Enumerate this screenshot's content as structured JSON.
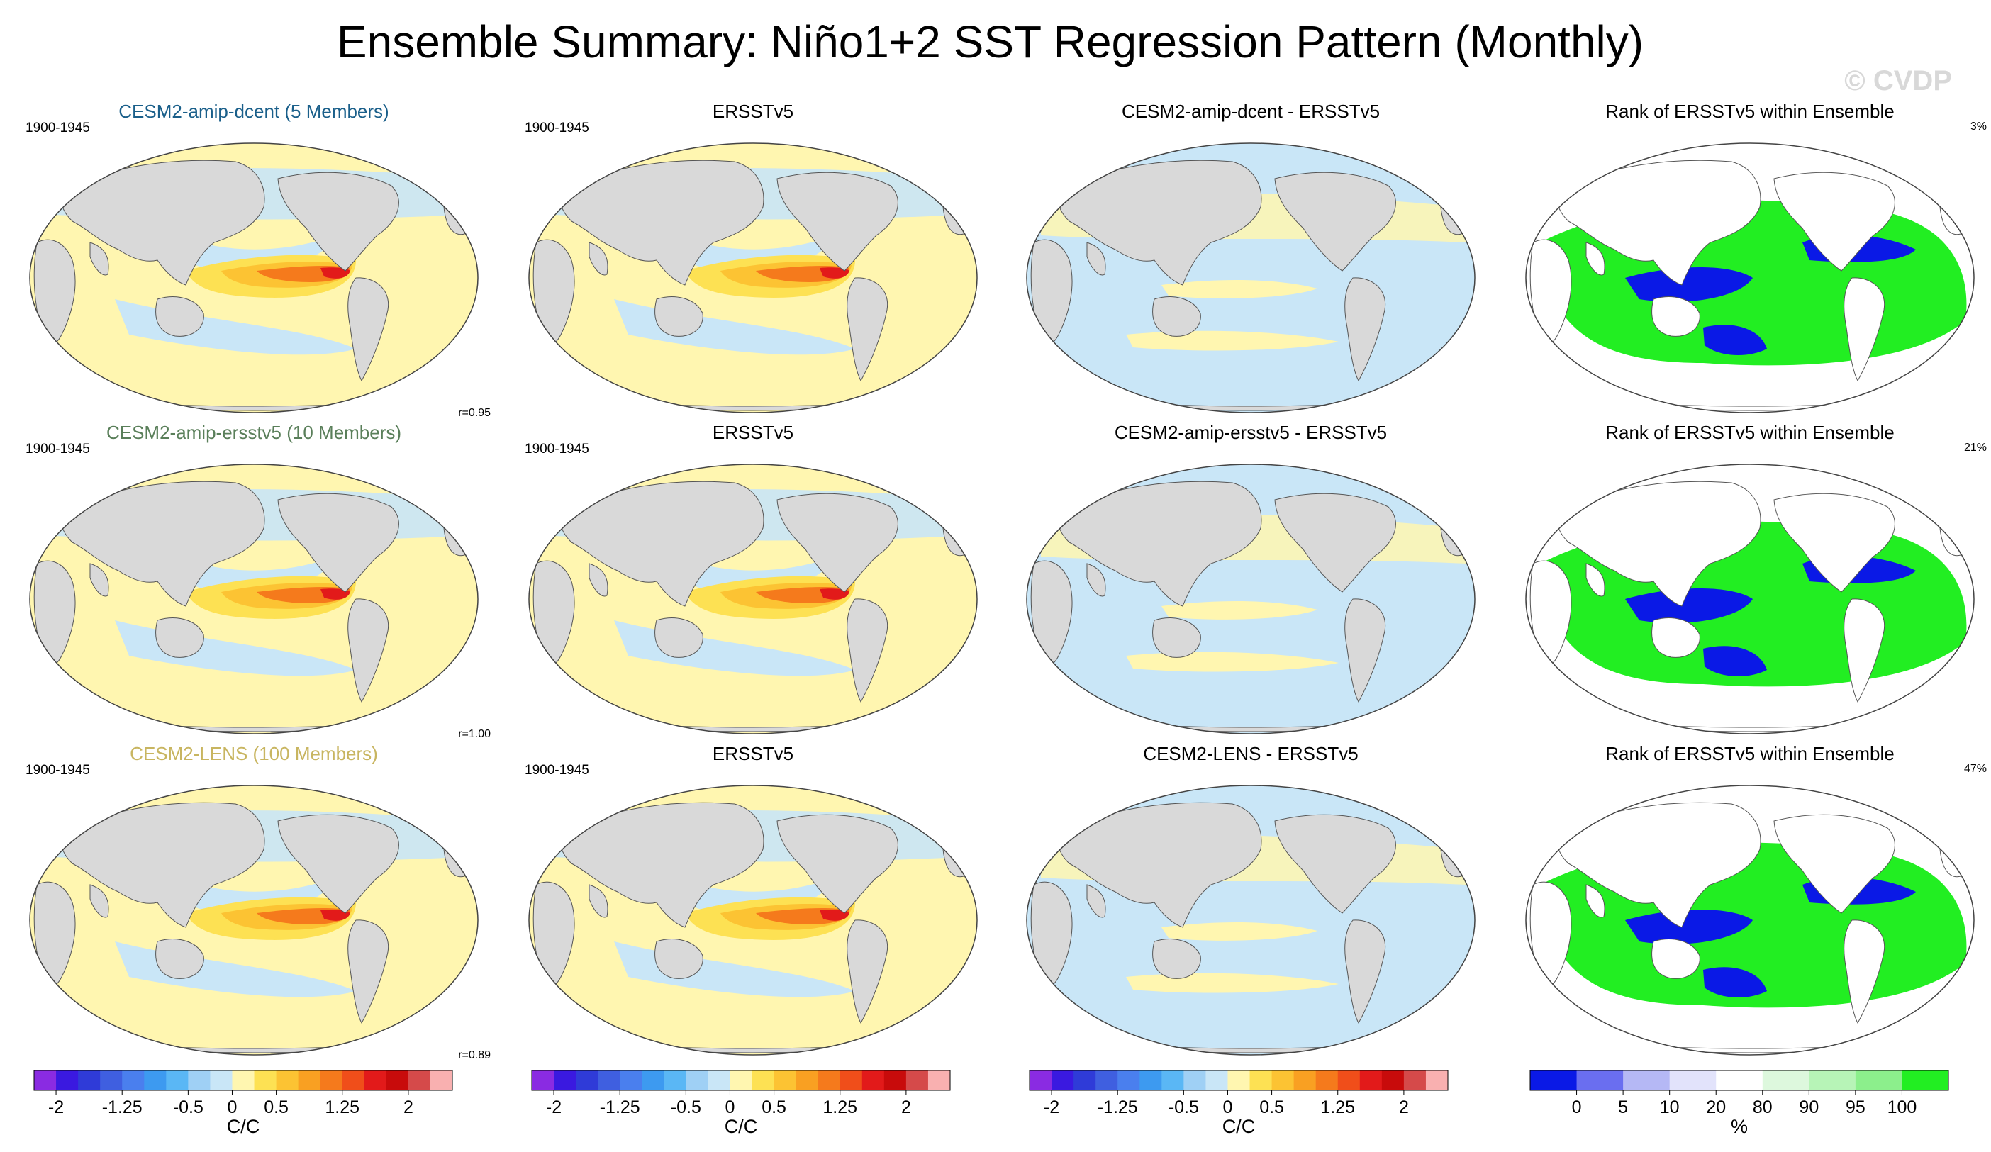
{
  "figure": {
    "title": "Ensemble Summary: Niño1+2 SST Regression Pattern (Monthly)",
    "watermark": "© CVDP"
  },
  "colors": {
    "row1_title": "#1a5f8a",
    "row2_title": "#5a7f5a",
    "row3_title": "#c8b560",
    "land": "#d9d9d9",
    "ocean_base": "#fff5a8"
  },
  "panels": [
    {
      "row": 0,
      "col": 0,
      "title": "CESM2-amip-dcent (5 Members)",
      "left": "1900-1945",
      "right": "",
      "corr": "r=0.95",
      "kind": "field"
    },
    {
      "row": 0,
      "col": 1,
      "title": "ERSSTv5",
      "left": "1900-1945",
      "right": "",
      "corr": "",
      "kind": "field"
    },
    {
      "row": 0,
      "col": 2,
      "title": "CESM2-amip-dcent - ERSSTv5",
      "left": "",
      "right": "",
      "corr": "",
      "kind": "diff"
    },
    {
      "row": 0,
      "col": 3,
      "title": "Rank of ERSSTv5 within Ensemble",
      "left": "",
      "right": "3%",
      "corr": "",
      "kind": "rank"
    },
    {
      "row": 1,
      "col": 0,
      "title": "CESM2-amip-ersstv5 (10 Members)",
      "left": "1900-1945",
      "right": "",
      "corr": "r=1.00",
      "kind": "field"
    },
    {
      "row": 1,
      "col": 1,
      "title": "ERSSTv5",
      "left": "1900-1945",
      "right": "",
      "corr": "",
      "kind": "field"
    },
    {
      "row": 1,
      "col": 2,
      "title": "CESM2-amip-ersstv5 - ERSSTv5",
      "left": "",
      "right": "",
      "corr": "",
      "kind": "diff"
    },
    {
      "row": 1,
      "col": 3,
      "title": "Rank of ERSSTv5 within Ensemble",
      "left": "",
      "right": "21%",
      "corr": "",
      "kind": "rank"
    },
    {
      "row": 2,
      "col": 0,
      "title": "CESM2-LENS (100 Members)",
      "left": "1900-1945",
      "right": "",
      "corr": "r=0.89",
      "kind": "field"
    },
    {
      "row": 2,
      "col": 1,
      "title": "ERSSTv5",
      "left": "1900-1945",
      "right": "",
      "corr": "",
      "kind": "field"
    },
    {
      "row": 2,
      "col": 2,
      "title": "CESM2-LENS - ERSSTv5",
      "left": "",
      "right": "",
      "corr": "",
      "kind": "diff"
    },
    {
      "row": 2,
      "col": 3,
      "title": "Rank of ERSSTv5 within Ensemble",
      "left": "",
      "right": "47%",
      "corr": "",
      "kind": "rank"
    }
  ],
  "chart_data": {
    "type": "heatmap",
    "projection": "global map (Robinson-like)",
    "variable": "SST regression onto Niño1+2",
    "period": "1900-1945",
    "correlations": {
      "CESM2-amip-dcent": 0.95,
      "CESM2-amip-ersstv5": 1.0,
      "CESM2-LENS": 0.89
    },
    "rank_percent": {
      "CESM2-amip-dcent": 3,
      "CESM2-amip-ersstv5": 21,
      "CESM2-LENS": 47
    },
    "sst_colorbar": {
      "units": "C/C",
      "levels": [
        -2,
        -1.75,
        -1.5,
        -1.25,
        -1,
        -0.75,
        -0.5,
        -0.25,
        0,
        0.25,
        0.5,
        0.75,
        1,
        1.25,
        1.5,
        1.75,
        2
      ],
      "tick_labels": [
        "-2",
        "-1.25",
        "-0.5",
        "0",
        "0.5",
        "1.25",
        "2"
      ],
      "tick_values": [
        -2,
        -1.25,
        -0.5,
        0,
        0.5,
        1.25,
        2
      ],
      "colors": [
        "#8a2be2",
        "#3a19e0",
        "#2f3bd8",
        "#3f5fe0",
        "#4a7fee",
        "#3d9af0",
        "#5ab7f5",
        "#9fd0f5",
        "#c9e6f7",
        "#fff6b0",
        "#fde153",
        "#fcc333",
        "#f9a022",
        "#f57a1c",
        "#f04e1a",
        "#e21a1a",
        "#c80b0b",
        "#d54a4a",
        "#f9b0b0"
      ]
    },
    "rank_colorbar": {
      "units": "%",
      "tick_labels": [
        "0",
        "5",
        "10",
        "20",
        "80",
        "90",
        "95",
        "100"
      ],
      "tick_values": [
        0,
        5,
        10,
        20,
        80,
        90,
        95,
        100
      ],
      "colors": [
        "#0a19e6",
        "#6a6ef0",
        "#b5b8f5",
        "#e2e3fb",
        "#ffffff",
        "#ddf8dd",
        "#b7f4b7",
        "#8cef8c",
        "#22ee22"
      ]
    }
  }
}
